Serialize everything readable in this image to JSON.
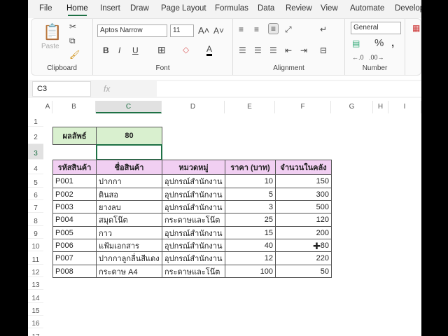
{
  "menu": [
    "File",
    "Home",
    "Insert",
    "Draw",
    "Page Layout",
    "Formulas",
    "Data",
    "Review",
    "View",
    "Automate",
    "Develop"
  ],
  "ribbon": {
    "paste": "Paste",
    "font_name": "Aptos Narrow",
    "font_size": "11",
    "number_format": "General",
    "groups": [
      "Clipboard",
      "Font",
      "Alignment",
      "Number"
    ],
    "bold": "B",
    "italic": "I",
    "underline": "U"
  },
  "formula_bar": {
    "name_box": "C3",
    "fx": "fx",
    "value": ""
  },
  "columns": [
    "A",
    "B",
    "C",
    "D",
    "E",
    "F",
    "G",
    "H",
    "I"
  ],
  "rows": [
    "1",
    "2",
    "3",
    "4",
    "5",
    "6",
    "7",
    "8",
    "9",
    "10",
    "11",
    "12",
    "13",
    "14",
    "15",
    "16",
    "17"
  ],
  "result": {
    "label": "ผลลัพธ์",
    "value": "80"
  },
  "table": {
    "headers": [
      "รหัสสินค้า",
      "ชื่อสินค้า",
      "หมวดหมู่",
      "ราคา (บาท)",
      "จำนวนในคลัง"
    ],
    "rows": [
      [
        "P001",
        "ปากกา",
        "อุปกรณ์สำนักงาน",
        "10",
        "150"
      ],
      [
        "P002",
        "ดินสอ",
        "อุปกรณ์สำนักงาน",
        "5",
        "300"
      ],
      [
        "P003",
        "ยางลบ",
        "อุปกรณ์สำนักงาน",
        "3",
        "500"
      ],
      [
        "P004",
        "สมุดโน๊ต",
        "กระดาษและโน๊ต",
        "25",
        "120"
      ],
      [
        "P005",
        "กาว",
        "อุปกรณ์สำนักงาน",
        "15",
        "200"
      ],
      [
        "P006",
        "แฟ้มเอกสาร",
        "อุปกรณ์สำนักงาน",
        "40",
        "80"
      ],
      [
        "P007",
        "ปากกาลูกลื่นสีแดง",
        "อุปกรณ์สำนักงาน",
        "12",
        "220"
      ],
      [
        "P008",
        "กระดาษ A4",
        "กระดาษและโน๊ต",
        "100",
        "50"
      ]
    ]
  },
  "colors": {
    "accent": "#1e7145",
    "header_fill": "#f1cff2",
    "result_fill": "#d9f0cf"
  }
}
